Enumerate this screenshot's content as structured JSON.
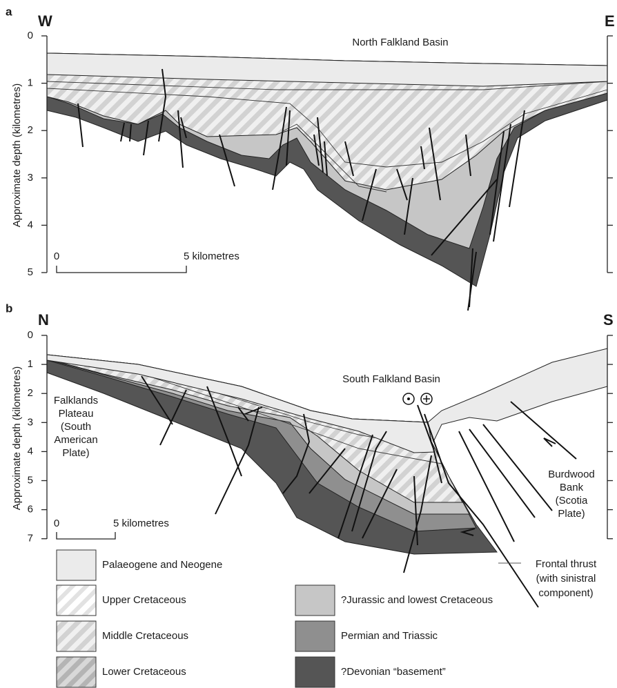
{
  "panel_a": {
    "label": "a",
    "left": "W",
    "right": "E",
    "title": "North Falkland Basin",
    "axis_label": "Approximate depth (kilometres)",
    "ticks": [
      0,
      1,
      2,
      3,
      4,
      5
    ],
    "scale": [
      "0",
      "5 kilometres"
    ]
  },
  "panel_b": {
    "label": "b",
    "left": "N",
    "right": "S",
    "title": "South Falkland Basin",
    "axis_label": "Approximate depth (kilometres)",
    "ticks": [
      0,
      1,
      2,
      3,
      4,
      5,
      6,
      7
    ],
    "scale": [
      "0",
      "5 kilometres"
    ],
    "plateau": [
      "Falklands",
      "Plateau",
      "(South",
      "American",
      "Plate)"
    ],
    "bank": [
      "Burdwood",
      "Bank",
      "(Scotia",
      "Plate)"
    ],
    "thrust": [
      "Frontal thrust",
      "(with sinistral",
      "component)"
    ]
  },
  "legend": [
    {
      "label": "Palaeogene and Neogene"
    },
    {
      "label": "Upper Cretaceous"
    },
    {
      "label": "Middle Cretaceous"
    },
    {
      "label": "Lower Cretaceous"
    },
    {
      "label": "?Jurassic and lowest Cretaceous"
    },
    {
      "label": "Permian and Triassic"
    },
    {
      "label": "?Devonian “basement”"
    }
  ]
}
